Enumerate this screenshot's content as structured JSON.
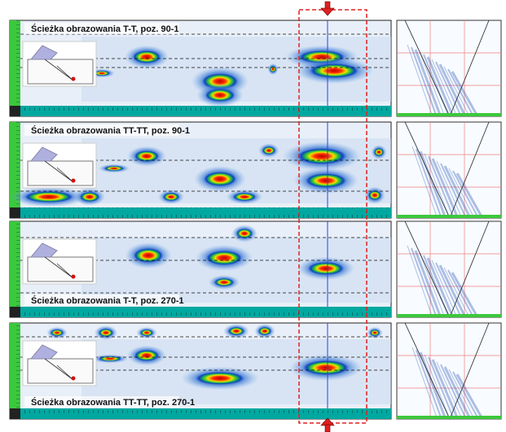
{
  "panels": [
    {
      "title": "Ścieżka obrazowania T-T, poz. 90-1"
    },
    {
      "title": "Ścieżka obrazowania TT-TT, poz. 90-1"
    },
    {
      "title": "Ścieżka obrazowania T-T, poz. 270-1"
    },
    {
      "title": "Ścieżka obrazowania TT-TT, poz. 270-1"
    }
  ]
}
